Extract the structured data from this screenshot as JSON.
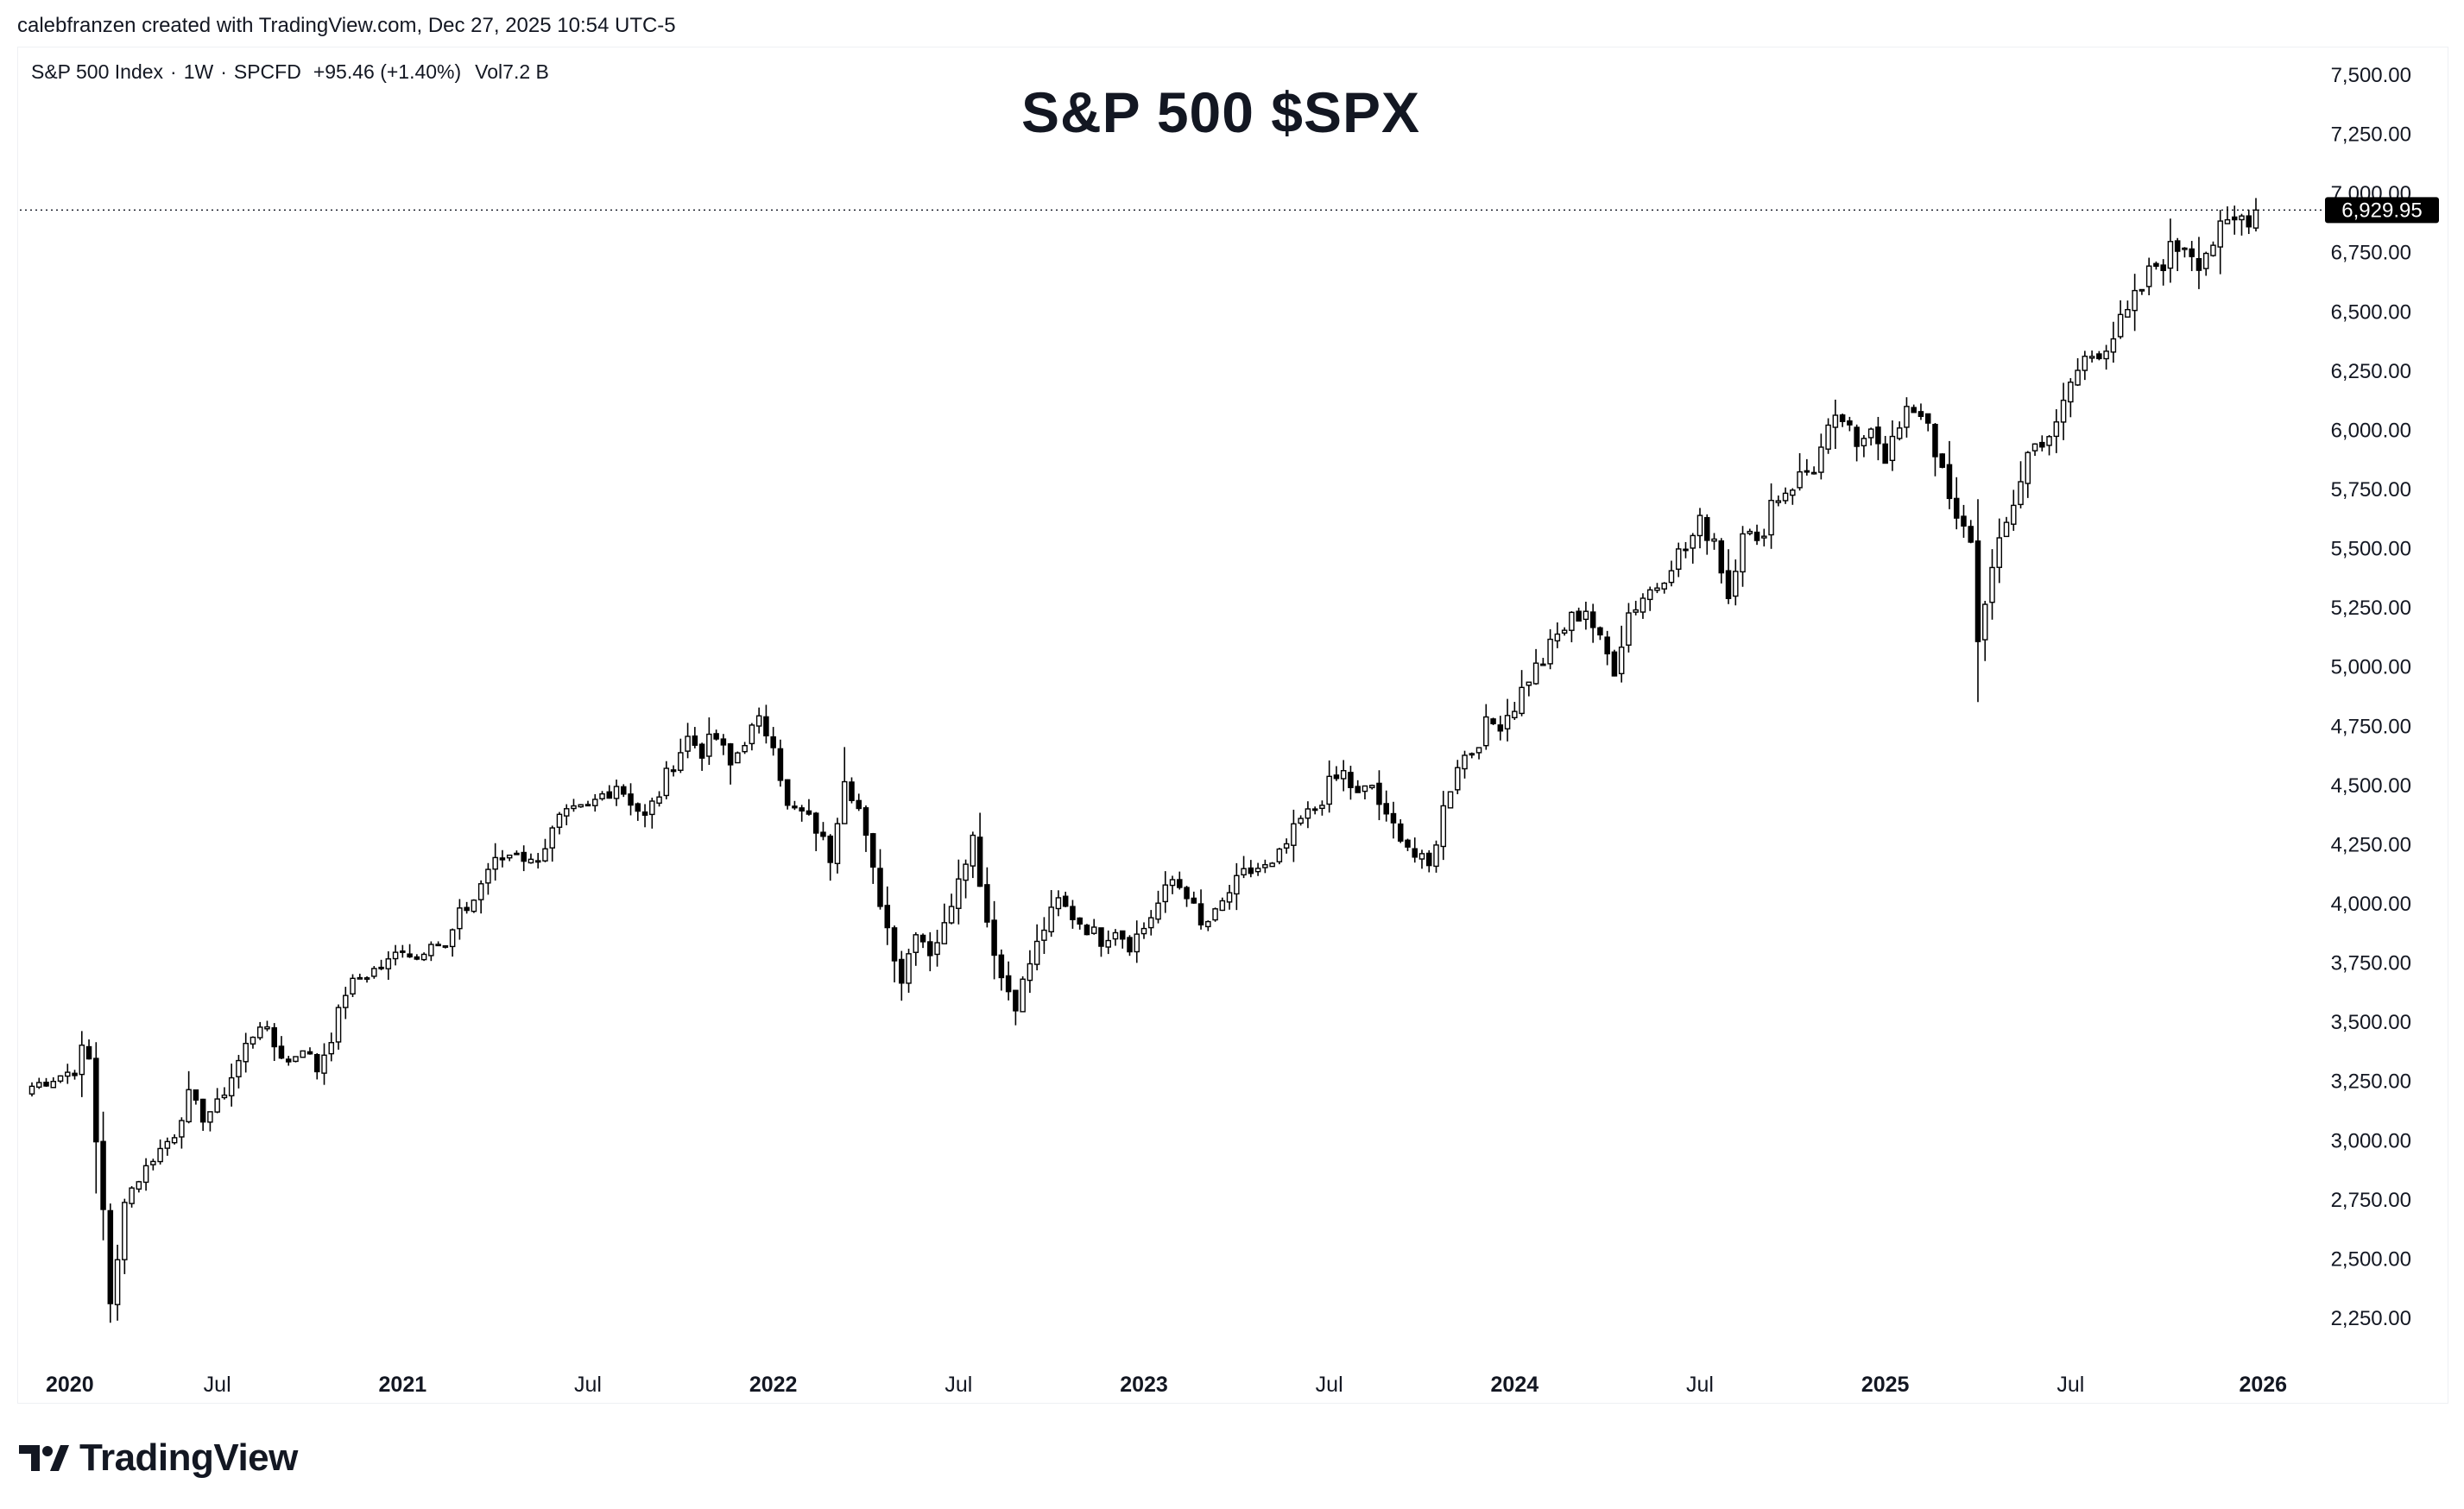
{
  "header": {
    "credit": "calebfranzen created with TradingView.com, Dec 27, 2025 10:54 UTC-5"
  },
  "legend": {
    "symbol": "S&P 500 Index",
    "interval": "1W",
    "source": "SPCFD",
    "change": "+95.46 (+1.40%)",
    "volume_label": "Vol",
    "volume": "7.2 B"
  },
  "footer": {
    "brand": "TradingView"
  },
  "colors": {
    "candle_body": "#000000",
    "candle_hollow": "#ffffff",
    "price_tag_bg": "#000000",
    "axis_text": "#131722",
    "price_line": "#131722"
  },
  "chart_data": {
    "type": "candlestick",
    "title": "S&P 500 $SPX",
    "interval": "weekly",
    "last_price": 6929.95,
    "last_price_label": "6,929.95",
    "ylim": [
      2100,
      7600
    ],
    "y_ticks": [
      2250,
      2500,
      2750,
      3000,
      3250,
      3500,
      3750,
      4000,
      4250,
      4500,
      4750,
      5000,
      5250,
      5500,
      5750,
      6000,
      6250,
      6500,
      6750,
      7000,
      7250,
      7500
    ],
    "y_tick_labels": [
      "2,250.00",
      "2,500.00",
      "2,750.00",
      "3,000.00",
      "3,250.00",
      "3,500.00",
      "3,750.00",
      "4,000.00",
      "4,250.00",
      "4,500.00",
      "4,750.00",
      "5,000.00",
      "5,250.00",
      "5,500.00",
      "5,750.00",
      "6,000.00",
      "6,250.00",
      "6,500.00",
      "6,750.00",
      "7,000.00",
      "7,250.00",
      "7,500.00"
    ],
    "x_range_weeks": [
      0,
      312
    ],
    "x_ticks": [
      {
        "label": "2020",
        "week": 0,
        "bold": true
      },
      {
        "label": "Jul",
        "week": 26,
        "bold": false
      },
      {
        "label": "2021",
        "week": 52,
        "bold": true
      },
      {
        "label": "Jul",
        "week": 78,
        "bold": false
      },
      {
        "label": "2022",
        "week": 104,
        "bold": true
      },
      {
        "label": "Jul",
        "week": 130,
        "bold": false
      },
      {
        "label": "2023",
        "week": 156,
        "bold": true
      },
      {
        "label": "Jul",
        "week": 182,
        "bold": false
      },
      {
        "label": "2024",
        "week": 208,
        "bold": true
      },
      {
        "label": "Jul",
        "week": 234,
        "bold": false
      },
      {
        "label": "2025",
        "week": 260,
        "bold": true
      },
      {
        "label": "Jul",
        "week": 286,
        "bold": false
      },
      {
        "label": "2026",
        "week": 313,
        "bold": true
      }
    ],
    "price_anchors": [
      [
        0,
        3230
      ],
      [
        6,
        3300
      ],
      [
        7,
        3380
      ],
      [
        8,
        3340
      ],
      [
        9,
        3000
      ],
      [
        10,
        2720
      ],
      [
        11,
        2300
      ],
      [
        12,
        2490
      ],
      [
        13,
        2760
      ],
      [
        15,
        2840
      ],
      [
        17,
        2930
      ],
      [
        20,
        3030
      ],
      [
        22,
        3190
      ],
      [
        24,
        3100
      ],
      [
        26,
        3150
      ],
      [
        28,
        3270
      ],
      [
        30,
        3400
      ],
      [
        32,
        3500
      ],
      [
        34,
        3400
      ],
      [
        36,
        3330
      ],
      [
        38,
        3400
      ],
      [
        40,
        3300
      ],
      [
        42,
        3440
      ],
      [
        44,
        3630
      ],
      [
        46,
        3690
      ],
      [
        48,
        3720
      ],
      [
        50,
        3750
      ],
      [
        52,
        3820
      ],
      [
        54,
        3770
      ],
      [
        56,
        3860
      ],
      [
        58,
        3810
      ],
      [
        60,
        3950
      ],
      [
        62,
        4020
      ],
      [
        64,
        4150
      ],
      [
        66,
        4190
      ],
      [
        68,
        4230
      ],
      [
        70,
        4170
      ],
      [
        72,
        4250
      ],
      [
        74,
        4350
      ],
      [
        76,
        4380
      ],
      [
        78,
        4400
      ],
      [
        80,
        4460
      ],
      [
        82,
        4510
      ],
      [
        84,
        4440
      ],
      [
        86,
        4360
      ],
      [
        88,
        4470
      ],
      [
        90,
        4600
      ],
      [
        92,
        4700
      ],
      [
        94,
        4650
      ],
      [
        96,
        4700
      ],
      [
        98,
        4580
      ],
      [
        100,
        4700
      ],
      [
        102,
        4760
      ],
      [
        104,
        4700
      ],
      [
        106,
        4400
      ],
      [
        108,
        4380
      ],
      [
        110,
        4320
      ],
      [
        112,
        4200
      ],
      [
        114,
        4550
      ],
      [
        116,
        4400
      ],
      [
        118,
        4130
      ],
      [
        120,
        3900
      ],
      [
        122,
        3680
      ],
      [
        124,
        3900
      ],
      [
        126,
        3800
      ],
      [
        128,
        3900
      ],
      [
        130,
        4130
      ],
      [
        132,
        4280
      ],
      [
        134,
        3930
      ],
      [
        136,
        3690
      ],
      [
        138,
        3580
      ],
      [
        140,
        3750
      ],
      [
        142,
        3900
      ],
      [
        144,
        4010
      ],
      [
        146,
        3950
      ],
      [
        148,
        3900
      ],
      [
        150,
        3850
      ],
      [
        152,
        3900
      ],
      [
        154,
        3830
      ],
      [
        156,
        3900
      ],
      [
        158,
        4000
      ],
      [
        160,
        4100
      ],
      [
        162,
        4050
      ],
      [
        164,
        3900
      ],
      [
        166,
        3950
      ],
      [
        168,
        4050
      ],
      [
        170,
        4120
      ],
      [
        172,
        4150
      ],
      [
        174,
        4150
      ],
      [
        176,
        4250
      ],
      [
        178,
        4350
      ],
      [
        180,
        4400
      ],
      [
        182,
        4500
      ],
      [
        184,
        4550
      ],
      [
        186,
        4450
      ],
      [
        188,
        4500
      ],
      [
        190,
        4350
      ],
      [
        192,
        4300
      ],
      [
        194,
        4200
      ],
      [
        196,
        4150
      ],
      [
        198,
        4400
      ],
      [
        200,
        4600
      ],
      [
        202,
        4650
      ],
      [
        204,
        4750
      ],
      [
        206,
        4770
      ],
      [
        208,
        4840
      ],
      [
        210,
        4960
      ],
      [
        212,
        5030
      ],
      [
        214,
        5130
      ],
      [
        216,
        5200
      ],
      [
        218,
        5250
      ],
      [
        220,
        5100
      ],
      [
        222,
        5000
      ],
      [
        224,
        5230
      ],
      [
        226,
        5300
      ],
      [
        228,
        5350
      ],
      [
        230,
        5450
      ],
      [
        232,
        5500
      ],
      [
        234,
        5600
      ],
      [
        236,
        5550
      ],
      [
        238,
        5300
      ],
      [
        240,
        5600
      ],
      [
        242,
        5500
      ],
      [
        244,
        5700
      ],
      [
        246,
        5750
      ],
      [
        248,
        5800
      ],
      [
        250,
        5850
      ],
      [
        252,
        5980
      ],
      [
        254,
        6050
      ],
      [
        256,
        5900
      ],
      [
        258,
        6050
      ],
      [
        260,
        5900
      ],
      [
        262,
        6000
      ],
      [
        264,
        6100
      ],
      [
        266,
        6050
      ],
      [
        268,
        5800
      ],
      [
        270,
        5600
      ],
      [
        272,
        5550
      ],
      [
        273,
        5100
      ],
      [
        274,
        5300
      ],
      [
        276,
        5500
      ],
      [
        278,
        5700
      ],
      [
        280,
        5900
      ],
      [
        282,
        5970
      ],
      [
        284,
        6000
      ],
      [
        286,
        6200
      ],
      [
        288,
        6300
      ],
      [
        290,
        6350
      ],
      [
        292,
        6400
      ],
      [
        294,
        6480
      ],
      [
        296,
        6600
      ],
      [
        298,
        6700
      ],
      [
        300,
        6750
      ],
      [
        302,
        6800
      ],
      [
        304,
        6730
      ],
      [
        306,
        6800
      ],
      [
        308,
        6850
      ],
      [
        310,
        6900
      ],
      [
        312,
        6930
      ]
    ]
  }
}
